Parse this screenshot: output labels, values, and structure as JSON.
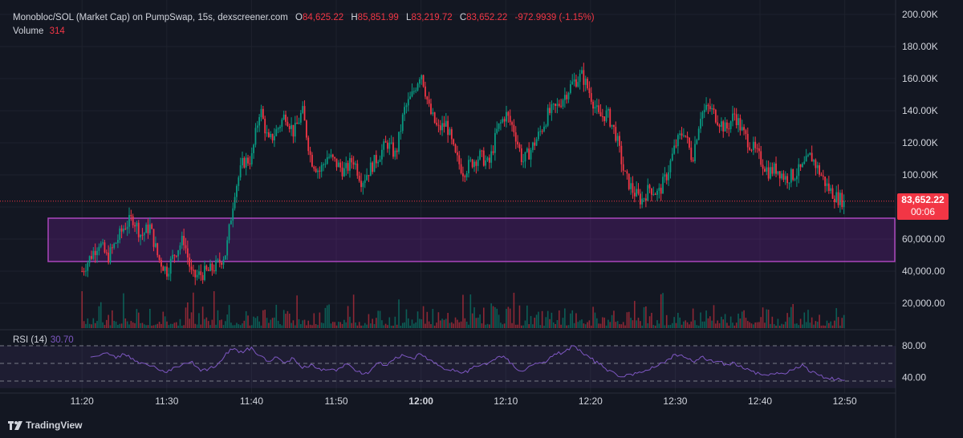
{
  "legend": {
    "title": "Monobloc/SOL (Market Cap) on PumpSwap, 15s, dexscreener.com",
    "o_label": "O",
    "o_value": "84,625.22",
    "h_label": "H",
    "h_value": "85,851.99",
    "l_label": "L",
    "l_value": "83,219.72",
    "c_label": "C",
    "c_value": "83,652.22",
    "change": "-972.9939 (-1.15%)",
    "volume_label": "Volume",
    "volume_value": "314"
  },
  "rsi": {
    "label": "RSI (14)",
    "value": "30.70"
  },
  "price_tag": {
    "price": "83,652.22",
    "countdown": "00:06"
  },
  "branding": {
    "name": "TradingView"
  },
  "colors": {
    "up": "#089981",
    "down": "#f23645",
    "rsi": "#7e57c2",
    "zone": "#ab47bc",
    "bg": "#131722"
  },
  "chart_data": {
    "type": "candlestick",
    "symbol": "Monobloc/SOL (Market Cap)",
    "interval": "15s",
    "time_labels": [
      "11:20",
      "11:30",
      "11:40",
      "11:50",
      "12:00",
      "12:10",
      "12:20",
      "12:30",
      "12:40",
      "12:50"
    ],
    "price_axis_labels": [
      "200.00K",
      "180.00K",
      "160.00K",
      "140.00K",
      "120.00K",
      "100.00K",
      "60,000.00",
      "40,000.00",
      "20,000.00"
    ],
    "rsi_axis_labels": [
      "80.00",
      "40.00"
    ],
    "price_range": [
      0,
      205000
    ],
    "zone": {
      "top": 73000,
      "bottom": 46000,
      "start": "11:16"
    },
    "current_price": 83652.22,
    "price_path": [
      [
        "11:20",
        40000
      ],
      [
        "11:22",
        58000
      ],
      [
        "11:23",
        48000
      ],
      [
        "11:25",
        68000
      ],
      [
        "11:26",
        73000
      ],
      [
        "11:27",
        62000
      ],
      [
        "11:28",
        68000
      ],
      [
        "11:29",
        48000
      ],
      [
        "11:30",
        40000
      ],
      [
        "11:31",
        52000
      ],
      [
        "11:32",
        60000
      ],
      [
        "11:33",
        36000
      ],
      [
        "11:35",
        40000
      ],
      [
        "11:36",
        44000
      ],
      [
        "11:37",
        52000
      ],
      [
        "11:38",
        90000
      ],
      [
        "11:39",
        108000
      ],
      [
        "11:40",
        110000
      ],
      [
        "11:41",
        142000
      ],
      [
        "11:42",
        120000
      ],
      [
        "11:43",
        128000
      ],
      [
        "11:44",
        138000
      ],
      [
        "11:45",
        126000
      ],
      [
        "11:46",
        140000
      ],
      [
        "11:47",
        110000
      ],
      [
        "11:48",
        102000
      ],
      [
        "11:49",
        112000
      ],
      [
        "11:51",
        102000
      ],
      [
        "11:52",
        110000
      ],
      [
        "11:53",
        96000
      ],
      [
        "11:54",
        104000
      ],
      [
        "11:56",
        120000
      ],
      [
        "11:57",
        112000
      ],
      [
        "11:58",
        140000
      ],
      [
        "11:59",
        150000
      ],
      [
        "12:00",
        165000
      ],
      [
        "12:01",
        140000
      ],
      [
        "12:02",
        128000
      ],
      [
        "12:03",
        132000
      ],
      [
        "12:04",
        112000
      ],
      [
        "12:05",
        102000
      ],
      [
        "12:06",
        108000
      ],
      [
        "12:07",
        112000
      ],
      [
        "12:08",
        106000
      ],
      [
        "12:09",
        128000
      ],
      [
        "12:10",
        138000
      ],
      [
        "12:11",
        128000
      ],
      [
        "12:12",
        108000
      ],
      [
        "12:13",
        116000
      ],
      [
        "12:14",
        126000
      ],
      [
        "12:15",
        138000
      ],
      [
        "12:16",
        142000
      ],
      [
        "12:17",
        150000
      ],
      [
        "12:18",
        158000
      ],
      [
        "12:19",
        162000
      ],
      [
        "12:20",
        150000
      ],
      [
        "12:21",
        136000
      ],
      [
        "12:22",
        138000
      ],
      [
        "12:23",
        125000
      ],
      [
        "12:24",
        100000
      ],
      [
        "12:25",
        90000
      ],
      [
        "12:26",
        84000
      ],
      [
        "12:27",
        92000
      ],
      [
        "12:28",
        88000
      ],
      [
        "12:29",
        100000
      ],
      [
        "12:30",
        118000
      ],
      [
        "12:31",
        128000
      ],
      [
        "12:32",
        110000
      ],
      [
        "12:33",
        138000
      ],
      [
        "12:34",
        142000
      ],
      [
        "12:35",
        135000
      ],
      [
        "12:36",
        128000
      ],
      [
        "12:37",
        138000
      ],
      [
        "12:38",
        126000
      ],
      [
        "12:39",
        118000
      ],
      [
        "12:40",
        110000
      ],
      [
        "12:41",
        102000
      ],
      [
        "12:42",
        104000
      ],
      [
        "12:43",
        98000
      ],
      [
        "12:44",
        100000
      ],
      [
        "12:45",
        104000
      ],
      [
        "12:46",
        112000
      ],
      [
        "12:47",
        102000
      ],
      [
        "12:48",
        92000
      ],
      [
        "12:49",
        86000
      ],
      [
        "12:50",
        83652
      ]
    ],
    "rsi_path": [
      [
        "11:21",
        64
      ],
      [
        "11:23",
        70
      ],
      [
        "11:24",
        62
      ],
      [
        "11:25",
        68
      ],
      [
        "11:26",
        62
      ],
      [
        "11:27",
        56
      ],
      [
        "11:29",
        46
      ],
      [
        "11:30",
        42
      ],
      [
        "11:31",
        50
      ],
      [
        "11:33",
        58
      ],
      [
        "11:34",
        44
      ],
      [
        "11:35",
        48
      ],
      [
        "11:36",
        54
      ],
      [
        "11:37",
        70
      ],
      [
        "11:38",
        76
      ],
      [
        "11:39",
        70
      ],
      [
        "11:40",
        78
      ],
      [
        "11:41",
        66
      ],
      [
        "11:42",
        58
      ],
      [
        "11:43",
        64
      ],
      [
        "11:44",
        56
      ],
      [
        "11:45",
        62
      ],
      [
        "11:46",
        48
      ],
      [
        "11:47",
        54
      ],
      [
        "11:48",
        48
      ],
      [
        "11:49",
        46
      ],
      [
        "11:50",
        44
      ],
      [
        "11:51",
        54
      ],
      [
        "11:52",
        48
      ],
      [
        "11:53",
        40
      ],
      [
        "11:54",
        44
      ],
      [
        "11:55",
        56
      ],
      [
        "11:56",
        52
      ],
      [
        "11:57",
        64
      ],
      [
        "11:58",
        66
      ],
      [
        "11:59",
        62
      ],
      [
        "12:00",
        68
      ],
      [
        "12:01",
        60
      ],
      [
        "12:02",
        52
      ],
      [
        "12:03",
        46
      ],
      [
        "12:04",
        44
      ],
      [
        "12:05",
        42
      ],
      [
        "12:06",
        48
      ],
      [
        "12:07",
        52
      ],
      [
        "12:08",
        56
      ],
      [
        "12:09",
        64
      ],
      [
        "12:10",
        62
      ],
      [
        "12:11",
        50
      ],
      [
        "12:12",
        44
      ],
      [
        "12:13",
        52
      ],
      [
        "12:14",
        56
      ],
      [
        "12:15",
        60
      ],
      [
        "12:16",
        68
      ],
      [
        "12:17",
        72
      ],
      [
        "12:18",
        80
      ],
      [
        "12:19",
        70
      ],
      [
        "12:20",
        62
      ],
      [
        "12:21",
        54
      ],
      [
        "12:22",
        44
      ],
      [
        "12:23",
        40
      ],
      [
        "12:24",
        36
      ],
      [
        "12:25",
        38
      ],
      [
        "12:26",
        42
      ],
      [
        "12:27",
        46
      ],
      [
        "12:28",
        52
      ],
      [
        "12:29",
        60
      ],
      [
        "12:30",
        68
      ],
      [
        "12:31",
        64
      ],
      [
        "12:32",
        58
      ],
      [
        "12:33",
        64
      ],
      [
        "12:34",
        60
      ],
      [
        "12:35",
        58
      ],
      [
        "12:36",
        54
      ],
      [
        "12:37",
        56
      ],
      [
        "12:38",
        48
      ],
      [
        "12:39",
        44
      ],
      [
        "12:40",
        40
      ],
      [
        "12:41",
        38
      ],
      [
        "12:42",
        42
      ],
      [
        "12:43",
        40
      ],
      [
        "12:44",
        46
      ],
      [
        "12:45",
        54
      ],
      [
        "12:46",
        42
      ],
      [
        "12:47",
        38
      ],
      [
        "12:48",
        34
      ],
      [
        "12:49",
        32
      ],
      [
        "12:50",
        31
      ]
    ],
    "grid": true
  }
}
